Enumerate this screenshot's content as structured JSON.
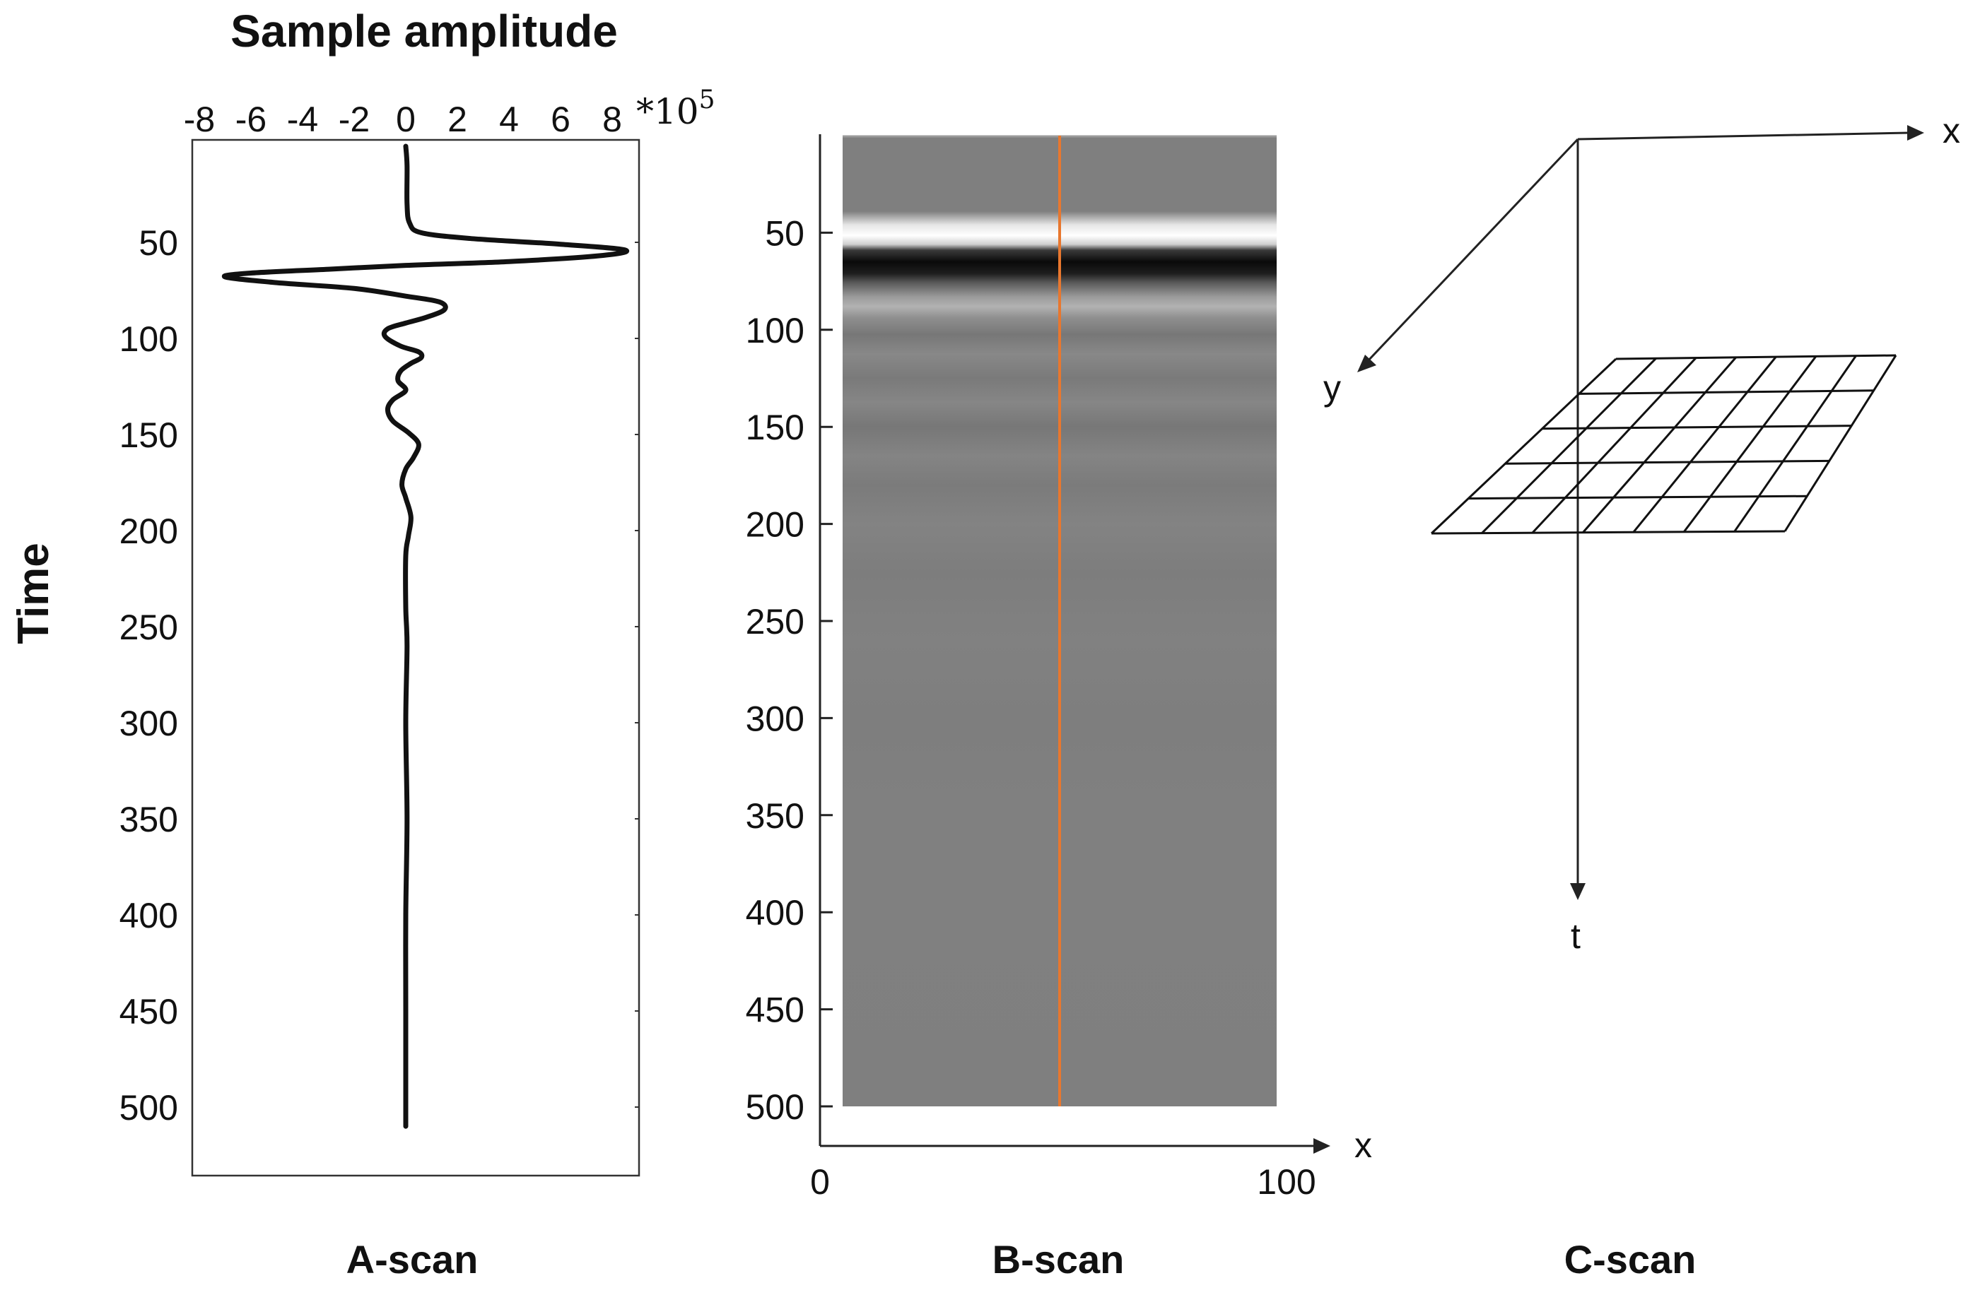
{
  "chart_data": [
    {
      "type": "line",
      "panel_label": "A-scan",
      "title": "Sample amplitude",
      "ylabel": "Time",
      "x_multiplier": "*10",
      "x_multiplier_exp": "5",
      "xlim": [
        -8,
        9
      ],
      "ylim": [
        0,
        535
      ],
      "x_ticks": [
        -8,
        -6,
        -4,
        -2,
        0,
        2,
        4,
        6,
        8
      ],
      "y_ticks": [
        50,
        100,
        150,
        200,
        250,
        300,
        350,
        400,
        450,
        500
      ],
      "series": [
        {
          "x": [
            0,
            0.05,
            0.05,
            0.15,
            0.6,
            2.5,
            6,
            8.5,
            7.5,
            4,
            0,
            -3,
            -6,
            -7,
            -5,
            -2,
            0,
            1.3,
            1.5,
            0.8,
            0,
            -0.7,
            -0.8,
            -0.2,
            0.5,
            0.6,
            0.2,
            -0.2,
            -0.3,
            0,
            -0.5,
            -0.7,
            -0.5,
            0.1,
            0.5,
            0.3,
            0,
            -0.15,
            0,
            0.2,
            0.1,
            0,
            0,
            0.05,
            0,
            0.05,
            0,
            0,
            0
          ],
          "y": [
            0,
            10,
            30,
            40,
            45,
            48,
            51,
            54,
            57,
            60,
            62,
            64,
            66,
            68,
            71,
            74,
            78,
            81,
            85,
            89,
            92,
            95,
            99,
            104,
            107,
            110,
            113,
            117,
            122,
            127,
            132,
            137,
            143,
            149,
            155,
            162,
            168,
            176,
            183,
            193,
            203,
            213,
            240,
            260,
            300,
            350,
            400,
            450,
            510
          ]
        }
      ]
    },
    {
      "type": "heatmap",
      "panel_label": "B-scan",
      "xlabel": "x",
      "xlim": [
        0,
        100
      ],
      "ylim": [
        0,
        500
      ],
      "x_ticks": [
        0,
        100
      ],
      "y_ticks": [
        50,
        100,
        150,
        200,
        250,
        300,
        350,
        400,
        450,
        500
      ],
      "highlight_color": "#e8772e",
      "highlight_x": 50
    }
  ],
  "c_scan": {
    "panel_label": "C-scan",
    "axis_x": "x",
    "axis_y": "y",
    "axis_t": "t"
  },
  "colors": {
    "trace": "#111111",
    "bscan_base": "#808080",
    "highlight": "#e8772e"
  }
}
